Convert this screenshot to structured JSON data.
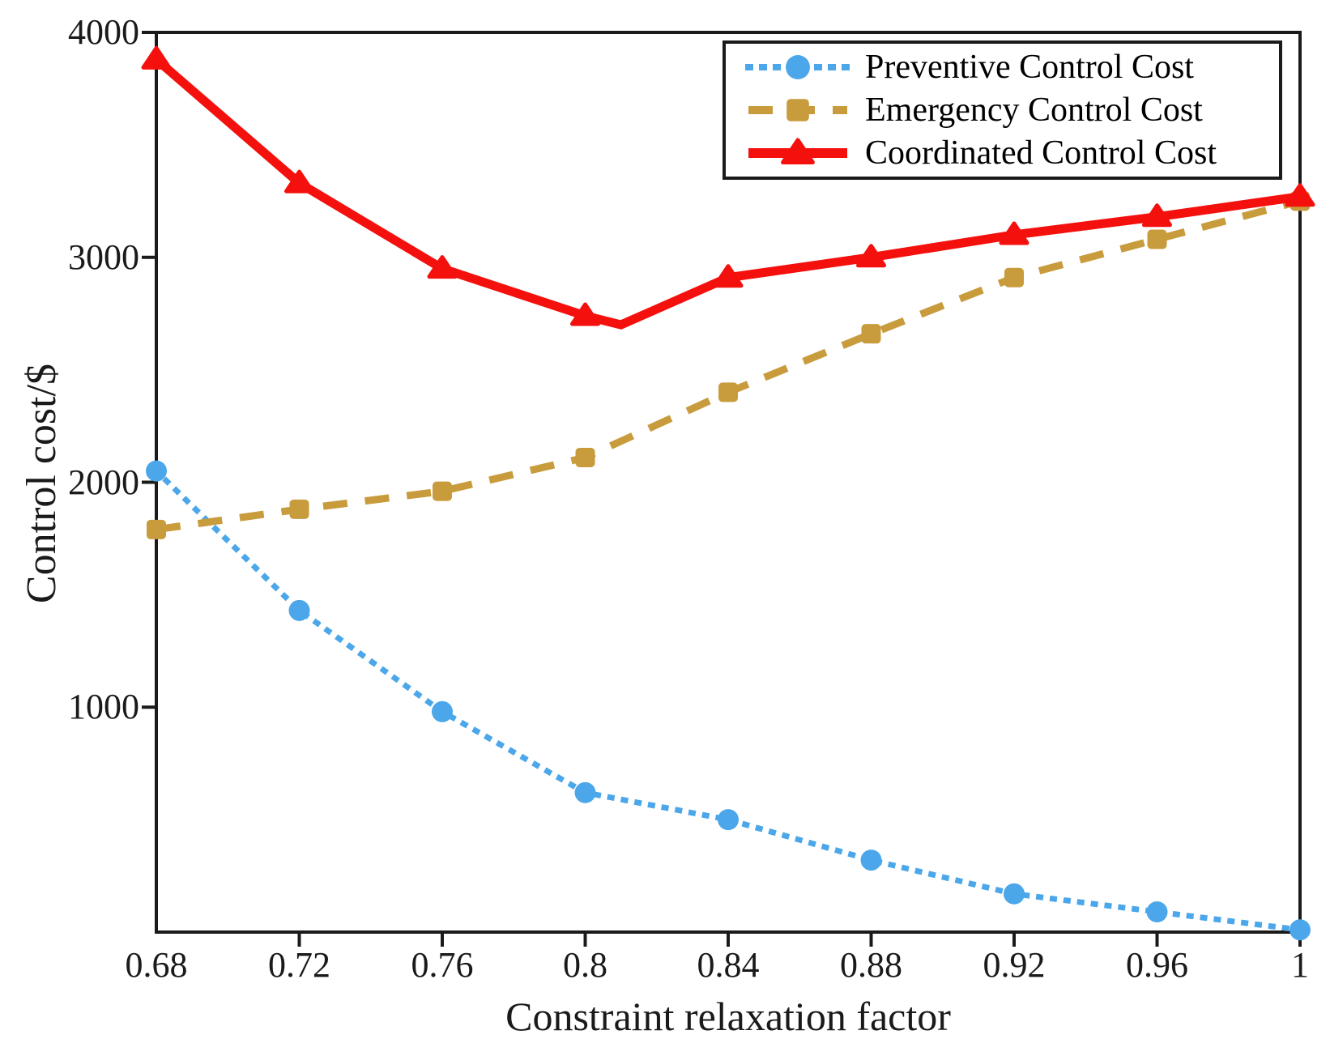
{
  "chart_data": {
    "type": "line",
    "title": "",
    "xlabel": "Constraint relaxation factor",
    "ylabel": "Control cost/$",
    "background": "#FFFFFF",
    "axis_color": "#1A1A1A",
    "grid": "off",
    "legend_position": "top-right",
    "xlim": [
      0.68,
      1.0
    ],
    "ylim": [
      0,
      4000
    ],
    "x": [
      0.68,
      0.72,
      0.76,
      0.8,
      0.84,
      0.88,
      0.92,
      0.96,
      1.0
    ],
    "x_tick_labels": [
      "0.68",
      "0.72",
      "0.76",
      "0.8",
      "0.84",
      "0.88",
      "0.92",
      "0.96",
      "1"
    ],
    "y_ticks": [
      1000,
      2000,
      3000,
      4000
    ],
    "y_tick_labels": [
      "1000",
      "2000",
      "3000",
      "4000"
    ],
    "series": [
      {
        "id": "preventive",
        "name": "Preventive Control Cost",
        "color": "#4BA7E9",
        "line": "dotted",
        "marker": "circle",
        "values": [
          2050,
          1430,
          980,
          620,
          500,
          320,
          170,
          90,
          10
        ]
      },
      {
        "id": "emergency",
        "name": "Emergency Control Cost",
        "color": "#C89B3C",
        "line": "dashed",
        "marker": "square",
        "values": [
          1790,
          1880,
          1960,
          2110,
          2400,
          2660,
          2910,
          3080,
          3250
        ]
      },
      {
        "id": "coordinated",
        "name": "Coordinated Control Cost",
        "color": "#F3100D",
        "line": "solid",
        "marker": "triangle",
        "values": [
          3880,
          3330,
          2950,
          2740,
          2910,
          3000,
          3100,
          3180,
          3270
        ],
        "line_extra_vertex": {
          "x": 0.81,
          "value": 2700,
          "after_index": 3
        }
      }
    ]
  }
}
